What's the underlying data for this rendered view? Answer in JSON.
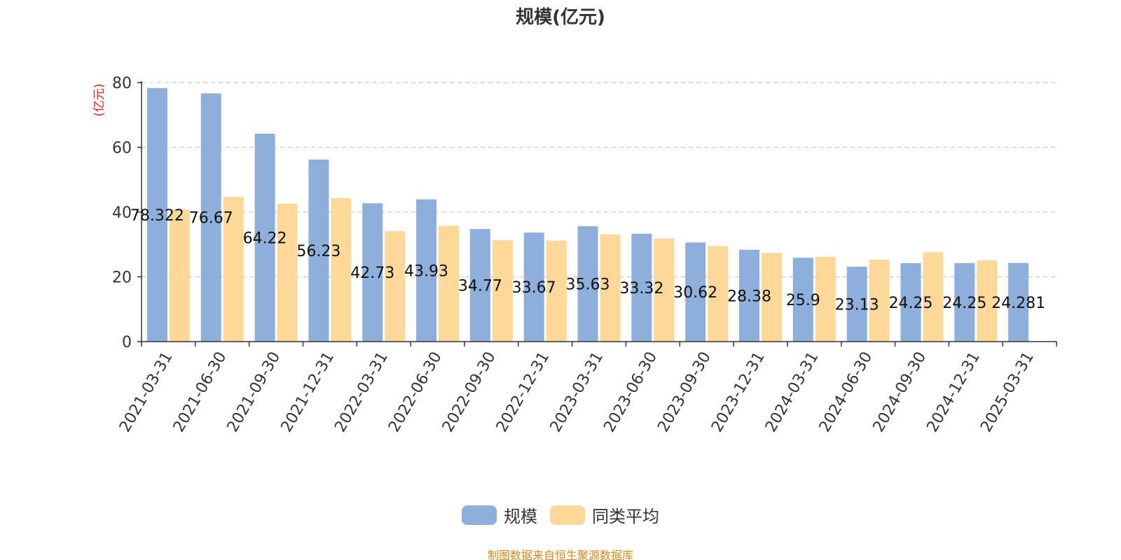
{
  "chart_data": {
    "type": "bar",
    "title": "规模(亿元)",
    "ylabel": "(亿元)",
    "xlabel": "",
    "ylim": [
      0,
      80
    ],
    "yticks": [
      0,
      20,
      40,
      60,
      80
    ],
    "grid": true,
    "legend_position": "bottom-center",
    "categories": [
      "2021-03-31",
      "2021-06-30",
      "2021-09-30",
      "2021-12-31",
      "2022-03-31",
      "2022-06-30",
      "2022-09-30",
      "2022-12-31",
      "2023-03-31",
      "2023-06-30",
      "2023-09-30",
      "2023-12-31",
      "2024-03-31",
      "2024-06-30",
      "2024-09-30",
      "2024-12-31",
      "2025-03-31"
    ],
    "series": [
      {
        "name": "规模",
        "color": "#8eaedb",
        "values": [
          78.322,
          76.67,
          64.22,
          56.23,
          42.73,
          43.93,
          34.77,
          33.67,
          35.63,
          33.32,
          30.62,
          28.38,
          25.9,
          23.13,
          24.25,
          24.25,
          24.281
        ],
        "labels": [
          "78.322",
          "76.67",
          "64.22",
          "56.23",
          "42.73",
          "43.93",
          "34.77",
          "33.67",
          "35.63",
          "33.32",
          "30.62",
          "28.38",
          "25.9",
          "23.13",
          "24.25",
          "24.25",
          "24.281"
        ]
      },
      {
        "name": "同类平均",
        "color": "#fdd899",
        "values": [
          40.8,
          44.7,
          42.6,
          44.3,
          34.1,
          35.8,
          31.3,
          31.2,
          33.1,
          31.8,
          29.5,
          27.4,
          26.2,
          25.3,
          27.6,
          25.1,
          null
        ]
      }
    ]
  },
  "source_note": "制图数据来自恒生聚源数据库"
}
